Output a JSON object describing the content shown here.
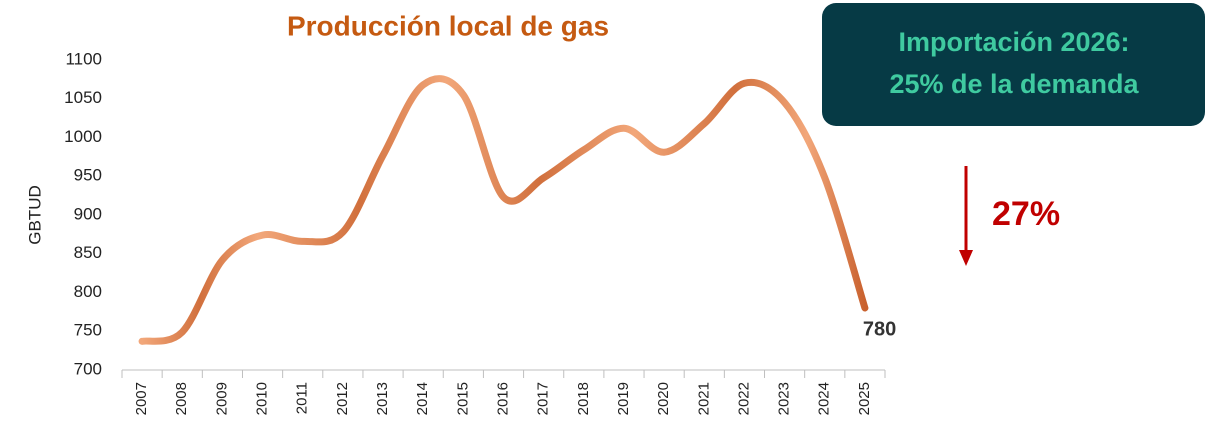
{
  "chart_data": {
    "type": "line",
    "title": "Producción local de gas",
    "y_label": "GBTUD",
    "categories": [
      "2007",
      "2008",
      "2009",
      "2010",
      "2011",
      "2012",
      "2013",
      "2014",
      "2015",
      "2016",
      "2017",
      "2018",
      "2019",
      "2020",
      "2021",
      "2022",
      "2023",
      "2024",
      "2025"
    ],
    "series": [
      {
        "name": "Producción local de gas",
        "color": "#d97a45",
        "values": [
          737,
          749,
          842,
          874,
          866,
          878,
          977,
          1068,
          1055,
          923,
          948,
          984,
          1012,
          981,
          1018,
          1070,
          1045,
          948,
          780
        ]
      }
    ],
    "ylim": [
      700,
      1100
    ],
    "yticks": [
      700,
      750,
      800,
      850,
      900,
      950,
      1000,
      1050,
      1100
    ],
    "grid": false,
    "annotations": {
      "box_lines": [
        "Importación 2026:",
        "25%  de la demanda"
      ],
      "change_label": "27%"
    }
  }
}
